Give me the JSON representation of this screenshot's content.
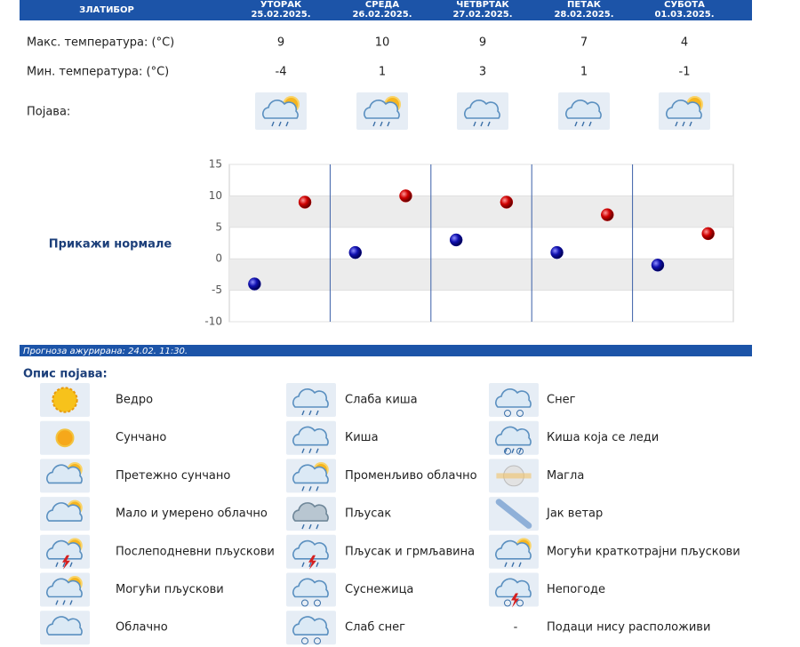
{
  "header": {
    "location": "ЗЛАТИБОР",
    "days": [
      {
        "name": "УТОРАК",
        "date": "25.02.2025."
      },
      {
        "name": "СРЕДА",
        "date": "26.02.2025."
      },
      {
        "name": "ЧЕТВРТАК",
        "date": "27.02.2025."
      },
      {
        "name": "ПЕТАК",
        "date": "28.02.2025."
      },
      {
        "name": "СУБОТА",
        "date": "01.03.2025."
      }
    ]
  },
  "phenomenon_label": "Појава:",
  "normals_button": "Прикажи нормале",
  "chart_data": {
    "type": "scatter",
    "series": [
      {
        "name": "Макс. температура: (°C)",
        "color": "#cc0000",
        "values": [
          9,
          10,
          9,
          7,
          4
        ]
      },
      {
        "name": "Мин. температура: (°C)",
        "color": "#1010a0",
        "values": [
          -4,
          1,
          3,
          1,
          -1
        ]
      }
    ],
    "ylim": [
      -10,
      15
    ],
    "yticks": [
      -10,
      -5,
      0,
      5,
      10,
      15
    ],
    "grid": true
  },
  "updated": "Прогноза ажурирана:  24.02. 11:30.",
  "legend": {
    "title": "Опис појава:",
    "items": [
      {
        "label": "Ведро"
      },
      {
        "label": "Сунчано"
      },
      {
        "label": "Претежно сунчано"
      },
      {
        "label": "Мало и умерено облачно"
      },
      {
        "label": "Послеподневни пљускови"
      },
      {
        "label": "Могући пљускови"
      },
      {
        "label": "Облачно"
      },
      {
        "label": "Слаба киша"
      },
      {
        "label": "Киша"
      },
      {
        "label": "Променљиво облачно"
      },
      {
        "label": "Пљусак"
      },
      {
        "label": "Пљусак и грмљавина"
      },
      {
        "label": "Суснежица"
      },
      {
        "label": "Слаб снег"
      },
      {
        "label": "Снег"
      },
      {
        "label": "Киша која се леди"
      },
      {
        "label": "Магла"
      },
      {
        "label": "Јак ветар"
      },
      {
        "label": "Могући краткотрајни пљускови"
      },
      {
        "label": "Непогоде"
      },
      {
        "symbol": "-",
        "label": "Подаци нису расположиви"
      }
    ]
  }
}
